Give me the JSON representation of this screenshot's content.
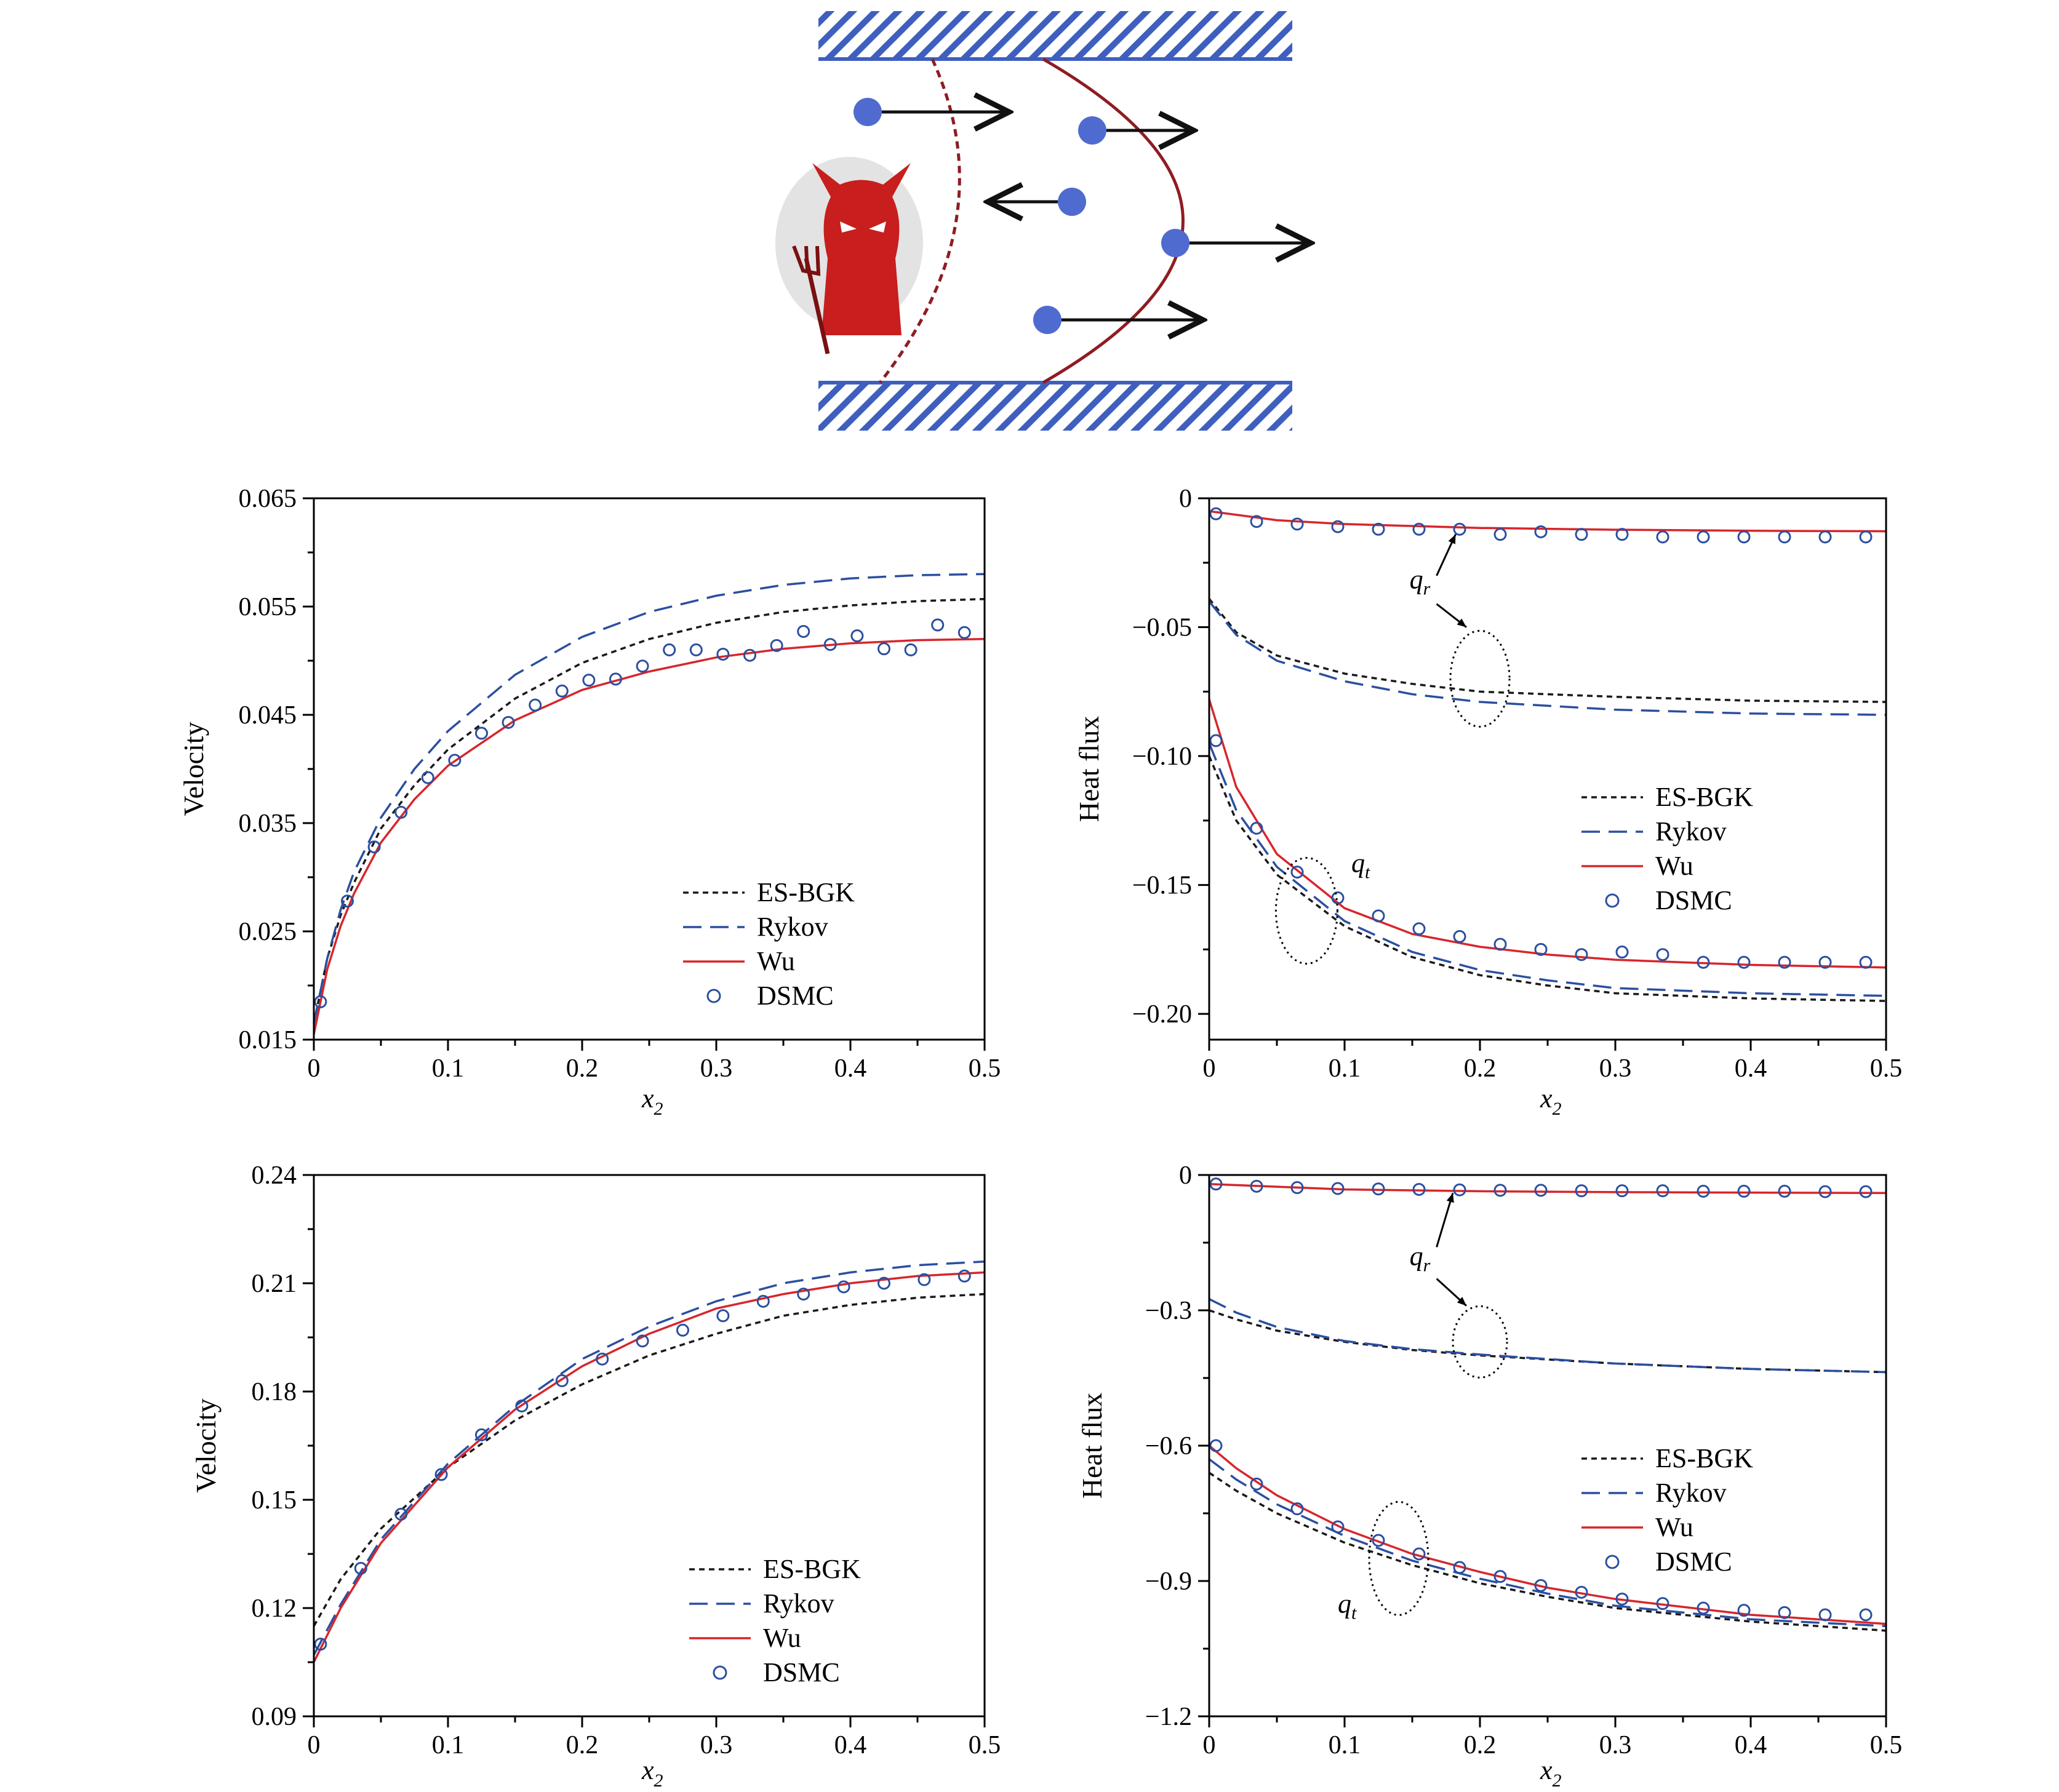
{
  "colors": {
    "esbgk": "#1a1a1a",
    "rykov": "#2b4fa0",
    "wu": "#d7262c",
    "dsmc": "#2b4fa0",
    "wall": "#3f5fbf",
    "particle": "#4f6bd0",
    "profile": "#8f1c22",
    "demon": "#c81e1e"
  },
  "schematic": {
    "description_icon": "maxwell-demon-icon"
  },
  "legend": {
    "esbgk": "ES-BGK",
    "rykov": "Rykov",
    "wu": "Wu",
    "dsmc": "DSMC"
  },
  "annotations": {
    "qr": "q",
    "qr_sub": "r",
    "qt": "q",
    "qt_sub": "t"
  },
  "chart_data": [
    {
      "id": "top-left",
      "type": "line",
      "xlabel": "x",
      "xlabel_sub": "2",
      "ylabel": "Velocity",
      "xlim": [
        0,
        0.5
      ],
      "ylim": [
        0.015,
        0.065
      ],
      "xticks": [
        0,
        0.1,
        0.2,
        0.3,
        0.4,
        0.5
      ],
      "xtick_labels": [
        "0",
        "0.1",
        "0.2",
        "0.3",
        "0.4",
        "0.5"
      ],
      "yticks": [
        0.015,
        0.025,
        0.035,
        0.045,
        0.055,
        0.065
      ],
      "ytick_labels": [
        "0.015",
        "0.025",
        "0.035",
        "0.045",
        "0.055",
        "0.065"
      ],
      "legend_position": "bottom-right",
      "series": [
        {
          "name": "ES-BGK",
          "style": "esbgk",
          "x": [
            0,
            0.01,
            0.02,
            0.03,
            0.05,
            0.075,
            0.1,
            0.15,
            0.2,
            0.25,
            0.3,
            0.35,
            0.4,
            0.45,
            0.5
          ],
          "y": [
            0.0165,
            0.0225,
            0.0265,
            0.0295,
            0.0345,
            0.0385,
            0.0418,
            0.0465,
            0.0498,
            0.052,
            0.0535,
            0.0545,
            0.0551,
            0.0555,
            0.0557
          ]
        },
        {
          "name": "Rykov",
          "style": "rykov",
          "x": [
            0,
            0.01,
            0.02,
            0.03,
            0.05,
            0.075,
            0.1,
            0.15,
            0.2,
            0.25,
            0.3,
            0.35,
            0.4,
            0.45,
            0.5
          ],
          "y": [
            0.0165,
            0.0225,
            0.027,
            0.0305,
            0.0355,
            0.04,
            0.0435,
            0.0487,
            0.0522,
            0.0545,
            0.056,
            0.057,
            0.0576,
            0.0579,
            0.058
          ]
        },
        {
          "name": "Wu",
          "style": "wu",
          "x": [
            0,
            0.01,
            0.02,
            0.03,
            0.05,
            0.075,
            0.1,
            0.15,
            0.2,
            0.25,
            0.3,
            0.35,
            0.4,
            0.45,
            0.5
          ],
          "y": [
            0.0155,
            0.0215,
            0.0255,
            0.0285,
            0.0332,
            0.0372,
            0.0403,
            0.0445,
            0.0473,
            0.049,
            0.0503,
            0.0511,
            0.0516,
            0.0519,
            0.052
          ]
        },
        {
          "name": "DSMC",
          "style": "dsmc",
          "markers": true,
          "x": [
            0.005,
            0.025,
            0.045,
            0.065,
            0.085,
            0.105,
            0.125,
            0.145,
            0.165,
            0.185,
            0.205,
            0.225,
            0.245,
            0.265,
            0.285,
            0.305,
            0.325,
            0.345,
            0.365,
            0.385,
            0.405,
            0.425,
            0.445,
            0.465,
            0.485
          ],
          "y": [
            0.0185,
            0.0278,
            0.0328,
            0.036,
            0.0392,
            0.0408,
            0.0433,
            0.0443,
            0.0459,
            0.0472,
            0.0482,
            0.0483,
            0.0495,
            0.051,
            0.051,
            0.0506,
            0.0505,
            0.0514,
            0.0527,
            0.0515,
            0.0523,
            0.0511,
            0.051,
            0.0533,
            0.0526
          ]
        }
      ]
    },
    {
      "id": "top-right",
      "type": "line",
      "xlabel": "x",
      "xlabel_sub": "2",
      "ylabel": "Heat flux",
      "xlim": [
        0,
        0.5
      ],
      "ylim": [
        -0.21,
        0
      ],
      "xticks": [
        0,
        0.1,
        0.2,
        0.3,
        0.4,
        0.5
      ],
      "xtick_labels": [
        "0",
        "0.1",
        "0.2",
        "0.3",
        "0.4",
        "0.5"
      ],
      "yticks": [
        -0.2,
        -0.15,
        -0.1,
        -0.05,
        0
      ],
      "ytick_labels": [
        "−0.20",
        "−0.15",
        "−0.10",
        "−0.05",
        "0"
      ],
      "legend_position": "center-right",
      "series": [
        {
          "name": "Wu q_r",
          "style": "wu",
          "x": [
            0,
            0.05,
            0.1,
            0.2,
            0.3,
            0.4,
            0.5
          ],
          "y": [
            -0.005,
            -0.0085,
            -0.01,
            -0.0115,
            -0.0122,
            -0.0126,
            -0.0128
          ]
        },
        {
          "name": "ES-BGK q_r",
          "style": "esbgk",
          "x": [
            0,
            0.02,
            0.05,
            0.1,
            0.15,
            0.2,
            0.3,
            0.4,
            0.5
          ],
          "y": [
            -0.039,
            -0.052,
            -0.061,
            -0.068,
            -0.072,
            -0.075,
            -0.077,
            -0.0785,
            -0.079
          ]
        },
        {
          "name": "Rykov q_r",
          "style": "rykov",
          "x": [
            0,
            0.02,
            0.05,
            0.1,
            0.15,
            0.2,
            0.3,
            0.4,
            0.5
          ],
          "y": [
            -0.04,
            -0.053,
            -0.063,
            -0.071,
            -0.076,
            -0.079,
            -0.082,
            -0.0835,
            -0.084
          ]
        },
        {
          "name": "ES-BGK q_t",
          "style": "esbgk",
          "x": [
            0,
            0.02,
            0.05,
            0.1,
            0.15,
            0.2,
            0.25,
            0.3,
            0.4,
            0.5
          ],
          "y": [
            -0.1,
            -0.125,
            -0.146,
            -0.166,
            -0.178,
            -0.185,
            -0.189,
            -0.192,
            -0.194,
            -0.195
          ]
        },
        {
          "name": "Rykov q_t",
          "style": "rykov",
          "x": [
            0,
            0.02,
            0.05,
            0.1,
            0.15,
            0.2,
            0.25,
            0.3,
            0.4,
            0.5
          ],
          "y": [
            -0.095,
            -0.121,
            -0.143,
            -0.164,
            -0.176,
            -0.183,
            -0.187,
            -0.19,
            -0.192,
            -0.193
          ]
        },
        {
          "name": "Wu q_t",
          "style": "wu",
          "x": [
            0,
            0.02,
            0.05,
            0.1,
            0.15,
            0.2,
            0.25,
            0.3,
            0.4,
            0.5
          ],
          "y": [
            -0.078,
            -0.112,
            -0.138,
            -0.159,
            -0.169,
            -0.174,
            -0.177,
            -0.179,
            -0.181,
            -0.182
          ]
        },
        {
          "name": "DSMC q_r",
          "style": "dsmc",
          "markers": true,
          "x": [
            0.005,
            0.035,
            0.065,
            0.095,
            0.125,
            0.155,
            0.185,
            0.215,
            0.245,
            0.275,
            0.305,
            0.335,
            0.365,
            0.395,
            0.425,
            0.455,
            0.485
          ],
          "y": [
            -0.006,
            -0.009,
            -0.01,
            -0.011,
            -0.012,
            -0.012,
            -0.012,
            -0.014,
            -0.013,
            -0.014,
            -0.014,
            -0.015,
            -0.015,
            -0.015,
            -0.015,
            -0.015,
            -0.015
          ]
        },
        {
          "name": "DSMC q_t",
          "style": "dsmc",
          "markers": true,
          "x": [
            0.005,
            0.035,
            0.065,
            0.095,
            0.125,
            0.155,
            0.185,
            0.215,
            0.245,
            0.275,
            0.305,
            0.335,
            0.365,
            0.395,
            0.425,
            0.455,
            0.485
          ],
          "y": [
            -0.094,
            -0.128,
            -0.145,
            -0.155,
            -0.162,
            -0.167,
            -0.17,
            -0.173,
            -0.175,
            -0.177,
            -0.176,
            -0.177,
            -0.18,
            -0.18,
            -0.18,
            -0.18,
            -0.18
          ]
        }
      ]
    },
    {
      "id": "bottom-left",
      "type": "line",
      "xlabel": "x",
      "xlabel_sub": "2",
      "ylabel": "Velocity",
      "xlim": [
        0,
        0.5
      ],
      "ylim": [
        0.09,
        0.24
      ],
      "xticks": [
        0,
        0.1,
        0.2,
        0.3,
        0.4,
        0.5
      ],
      "xtick_labels": [
        "0",
        "0.1",
        "0.2",
        "0.3",
        "0.4",
        "0.5"
      ],
      "yticks": [
        0.09,
        0.12,
        0.15,
        0.18,
        0.21,
        0.24
      ],
      "ytick_labels": [
        "0.09",
        "0.12",
        "0.15",
        "0.18",
        "0.21",
        "0.24"
      ],
      "legend_position": "bottom-right",
      "series": [
        {
          "name": "ES-BGK",
          "style": "esbgk",
          "x": [
            0,
            0.02,
            0.05,
            0.1,
            0.15,
            0.2,
            0.25,
            0.3,
            0.35,
            0.4,
            0.45,
            0.5
          ],
          "y": [
            0.115,
            0.128,
            0.142,
            0.159,
            0.172,
            0.182,
            0.19,
            0.196,
            0.201,
            0.204,
            0.206,
            0.207
          ]
        },
        {
          "name": "Rykov",
          "style": "rykov",
          "x": [
            0,
            0.02,
            0.05,
            0.1,
            0.15,
            0.2,
            0.25,
            0.3,
            0.35,
            0.4,
            0.45,
            0.5
          ],
          "y": [
            0.107,
            0.121,
            0.139,
            0.16,
            0.176,
            0.189,
            0.198,
            0.205,
            0.21,
            0.213,
            0.215,
            0.216
          ]
        },
        {
          "name": "Wu",
          "style": "wu",
          "x": [
            0,
            0.02,
            0.05,
            0.1,
            0.15,
            0.2,
            0.25,
            0.3,
            0.35,
            0.4,
            0.45,
            0.5
          ],
          "y": [
            0.105,
            0.12,
            0.138,
            0.159,
            0.175,
            0.187,
            0.196,
            0.203,
            0.207,
            0.21,
            0.212,
            0.213
          ]
        },
        {
          "name": "DSMC",
          "style": "dsmc",
          "markers": true,
          "x": [
            0.005,
            0.035,
            0.065,
            0.095,
            0.125,
            0.155,
            0.185,
            0.215,
            0.245,
            0.275,
            0.305,
            0.335,
            0.365,
            0.395,
            0.425,
            0.455,
            0.485
          ],
          "y": [
            0.11,
            0.131,
            0.146,
            0.157,
            0.168,
            0.176,
            0.183,
            0.189,
            0.194,
            0.197,
            0.201,
            0.205,
            0.207,
            0.209,
            0.21,
            0.211,
            0.212
          ]
        }
      ]
    },
    {
      "id": "bottom-right",
      "type": "line",
      "xlabel": "x",
      "xlabel_sub": "2",
      "ylabel": "Heat flux",
      "xlim": [
        0,
        0.5
      ],
      "ylim": [
        -1.2,
        0
      ],
      "xticks": [
        0,
        0.1,
        0.2,
        0.3,
        0.4,
        0.5
      ],
      "xtick_labels": [
        "0",
        "0.1",
        "0.2",
        "0.3",
        "0.4",
        "0.5"
      ],
      "yticks": [
        -1.2,
        -0.9,
        -0.6,
        -0.3,
        0
      ],
      "ytick_labels": [
        "−1.2",
        "−0.9",
        "−0.6",
        "−0.3",
        "0"
      ],
      "legend_position": "center-right",
      "series": [
        {
          "name": "Wu q_r",
          "style": "wu",
          "x": [
            0,
            0.1,
            0.2,
            0.3,
            0.4,
            0.5
          ],
          "y": [
            -0.02,
            -0.032,
            -0.036,
            -0.038,
            -0.039,
            -0.04
          ]
        },
        {
          "name": "ES-BGK q_r",
          "style": "esbgk",
          "x": [
            0,
            0.02,
            0.05,
            0.1,
            0.15,
            0.2,
            0.3,
            0.4,
            0.5
          ],
          "y": [
            -0.3,
            -0.32,
            -0.345,
            -0.37,
            -0.388,
            -0.4,
            -0.418,
            -0.43,
            -0.437
          ]
        },
        {
          "name": "Rykov q_r",
          "style": "rykov",
          "x": [
            0,
            0.02,
            0.05,
            0.1,
            0.15,
            0.2,
            0.3,
            0.4,
            0.5
          ],
          "y": [
            -0.275,
            -0.305,
            -0.337,
            -0.368,
            -0.386,
            -0.398,
            -0.418,
            -0.43,
            -0.437
          ]
        },
        {
          "name": "ES-BGK q_t",
          "style": "esbgk",
          "x": [
            0,
            0.02,
            0.05,
            0.1,
            0.15,
            0.2,
            0.25,
            0.3,
            0.4,
            0.5
          ],
          "y": [
            -0.66,
            -0.7,
            -0.75,
            -0.815,
            -0.865,
            -0.905,
            -0.935,
            -0.96,
            -0.99,
            -1.01
          ]
        },
        {
          "name": "Rykov q_t",
          "style": "rykov",
          "x": [
            0,
            0.02,
            0.05,
            0.1,
            0.15,
            0.2,
            0.25,
            0.3,
            0.4,
            0.5
          ],
          "y": [
            -0.63,
            -0.675,
            -0.73,
            -0.8,
            -0.855,
            -0.895,
            -0.928,
            -0.955,
            -0.985,
            -1.0
          ]
        },
        {
          "name": "Wu q_t",
          "style": "wu",
          "x": [
            0,
            0.02,
            0.05,
            0.1,
            0.15,
            0.2,
            0.25,
            0.3,
            0.4,
            0.5
          ],
          "y": [
            -0.6,
            -0.65,
            -0.71,
            -0.785,
            -0.84,
            -0.88,
            -0.915,
            -0.94,
            -0.975,
            -0.995
          ]
        },
        {
          "name": "DSMC q_r",
          "style": "dsmc",
          "markers": true,
          "x": [
            0.005,
            0.035,
            0.065,
            0.095,
            0.125,
            0.155,
            0.185,
            0.215,
            0.245,
            0.275,
            0.305,
            0.335,
            0.365,
            0.395,
            0.425,
            0.455,
            0.485
          ],
          "y": [
            -0.02,
            -0.025,
            -0.028,
            -0.03,
            -0.031,
            -0.032,
            -0.033,
            -0.034,
            -0.034,
            -0.035,
            -0.035,
            -0.035,
            -0.036,
            -0.036,
            -0.036,
            -0.037,
            -0.037
          ]
        },
        {
          "name": "DSMC q_t",
          "style": "dsmc",
          "markers": true,
          "x": [
            0.005,
            0.035,
            0.065,
            0.095,
            0.125,
            0.155,
            0.185,
            0.215,
            0.245,
            0.275,
            0.305,
            0.335,
            0.365,
            0.395,
            0.425,
            0.455,
            0.485
          ],
          "y": [
            -0.6,
            -0.685,
            -0.74,
            -0.78,
            -0.81,
            -0.84,
            -0.87,
            -0.89,
            -0.91,
            -0.925,
            -0.94,
            -0.95,
            -0.96,
            -0.965,
            -0.97,
            -0.975,
            -0.975
          ]
        }
      ]
    }
  ]
}
